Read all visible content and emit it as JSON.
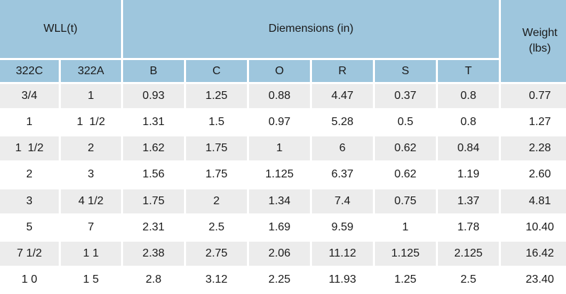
{
  "header": {
    "wll": "WLL(t)",
    "dimensions": "Diemensions (in)",
    "weight": "Weight\n(lbs)",
    "columns": [
      "322C",
      "322A",
      "B",
      "C",
      "O",
      "R",
      "S",
      "T"
    ]
  },
  "rows": [
    [
      "3/4",
      "1",
      "0.93",
      "1.25",
      "0.88",
      "4.47",
      "0.37",
      "0.8",
      "0.77"
    ],
    [
      "1",
      "1  1/2",
      "1.31",
      "1.5",
      "0.97",
      "5.28",
      "0.5",
      "0.8",
      "1.27"
    ],
    [
      "1  1/2",
      "2",
      "1.62",
      "1.75",
      "1",
      "6",
      "0.62",
      "0.84",
      "2.28"
    ],
    [
      "2",
      "3",
      "1.56",
      "1.75",
      "1.125",
      "6.37",
      "0.62",
      "1.19",
      "2.60"
    ],
    [
      "3",
      "4 1/2",
      "1.75",
      "2",
      "1.34",
      "7.4",
      "0.75",
      "1.37",
      "4.81"
    ],
    [
      "5",
      "7",
      "2.31",
      "2.5",
      "1.69",
      "9.59",
      "1",
      "1.78",
      "10.40"
    ],
    [
      "7 1/2",
      "1 1",
      "2.38",
      "2.75",
      "2.06",
      "11.12",
      "1.125",
      "2.125",
      "16.42"
    ],
    [
      "1 0",
      "1 5",
      "2.8",
      "3.12",
      "2.25",
      "11.93",
      "1.25",
      "2.5",
      "23.40"
    ]
  ],
  "colors": {
    "header_bg": "#9ec6dd",
    "row_alt_bg": "#ececec"
  }
}
